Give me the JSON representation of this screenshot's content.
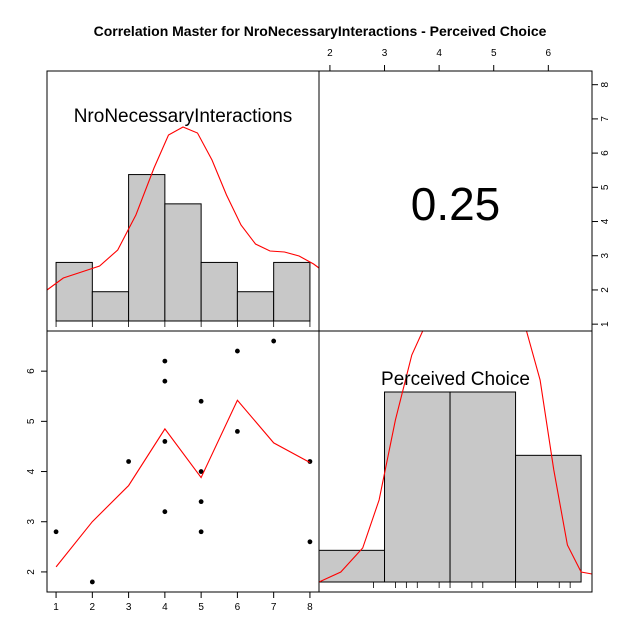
{
  "chart_data": {
    "type": "scatter-matrix",
    "title": "Correlation Master for NroNecessaryInteractions - Perceived Choice",
    "variables": [
      "NroNecessaryInteractions",
      "Perceived Choice"
    ],
    "correlation": "0.25",
    "histogram_1": {
      "variable": "NroNecessaryInteractions",
      "breaks": [
        1,
        2,
        3,
        4,
        5,
        6,
        7,
        8
      ],
      "counts": [
        2,
        1,
        5,
        4,
        2,
        1,
        2
      ],
      "density_curve_color": "#ff0000",
      "bar_color": "#c8c8c8"
    },
    "histogram_2": {
      "variable": "Perceived Choice",
      "breaks": [
        1.8,
        3.0,
        4.2,
        5.4,
        6.6
      ],
      "counts": [
        1,
        6,
        6,
        4
      ],
      "rug": [
        2.8,
        3.2,
        3.4,
        3.6,
        4.0,
        4.2,
        4.6,
        4.8,
        5.4,
        5.8,
        6.2,
        6.4
      ],
      "density_curve_color": "#ff0000",
      "bar_color": "#c8c8c8"
    },
    "scatter": {
      "x_variable": "NroNecessaryInteractions",
      "y_variable": "Perceived Choice",
      "points": [
        [
          1,
          2.8
        ],
        [
          2,
          1.8
        ],
        [
          3,
          4.2
        ],
        [
          4,
          6.2
        ],
        [
          4,
          5.8
        ],
        [
          4,
          4.6
        ],
        [
          4,
          3.2
        ],
        [
          5,
          5.4
        ],
        [
          5,
          4.0
        ],
        [
          5,
          3.4
        ],
        [
          5,
          2.8
        ],
        [
          6,
          6.4
        ],
        [
          6,
          4.8
        ],
        [
          7,
          6.6
        ],
        [
          8,
          4.2
        ],
        [
          8,
          2.6
        ]
      ],
      "smooth_line": [
        [
          1,
          2.1
        ],
        [
          2,
          3.0
        ],
        [
          3,
          3.72
        ],
        [
          4,
          4.85
        ],
        [
          5,
          3.88
        ],
        [
          6,
          5.42
        ],
        [
          7,
          4.57
        ],
        [
          8,
          4.18
        ]
      ],
      "line_color": "#ff0000"
    },
    "axes": {
      "bottom_ticks": [
        "1",
        "2",
        "3",
        "4",
        "5",
        "6",
        "7",
        "8"
      ],
      "left_ticks": [
        "2",
        "3",
        "4",
        "5",
        "6"
      ],
      "top_ticks": [
        "2",
        "3",
        "4",
        "5",
        "6"
      ],
      "right_ticks": [
        "1",
        "2",
        "3",
        "4",
        "5",
        "6",
        "7",
        "8"
      ],
      "x_range_1": [
        0.75,
        8.25
      ],
      "y_range_2": [
        1.6,
        6.8
      ],
      "x_range_2": [
        1.8,
        6.8
      ],
      "y_range_right": [
        0.8,
        8.4
      ]
    }
  }
}
